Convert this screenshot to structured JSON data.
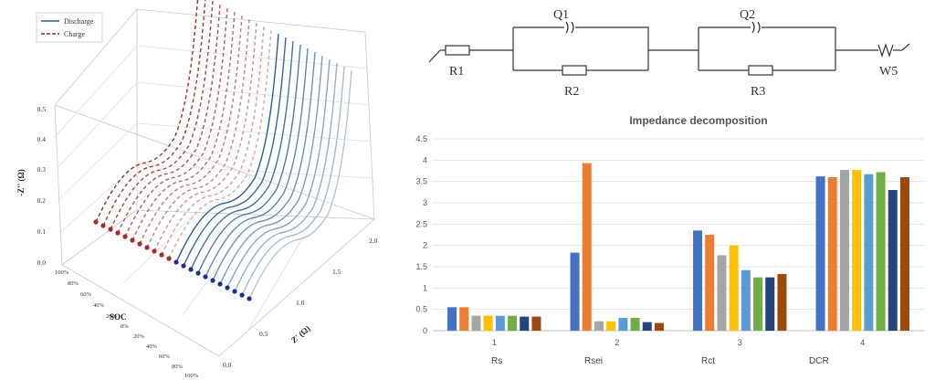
{
  "chart_data": [
    {
      "type": "line",
      "view": "3d-waterfall",
      "xlabel": "Z' (Ω)",
      "ylabel": "SOC",
      "zlabel": "-Z'' (Ω)",
      "x_ticks": [
        "0.0",
        "0.5",
        "1.0",
        "1.5",
        "2.0"
      ],
      "y_ticks": [
        "100%",
        "80%",
        "60%",
        "40%",
        "20%",
        "0%",
        "20%",
        "40%",
        "60%",
        "80%",
        "100%"
      ],
      "z_ticks": [
        "0.0",
        "0.1",
        "0.2",
        "0.3",
        "0.4",
        "0.5"
      ],
      "legend": [
        {
          "label": "Discharge",
          "color": "#2b5d94",
          "style": "solid"
        },
        {
          "label": "Charge",
          "color": "#a72a2a",
          "style": "dashed"
        }
      ],
      "legend_position": "top-left",
      "series_count": {
        "charge": 11,
        "discharge": 11
      }
    },
    {
      "type": "diagram",
      "labels": {
        "r1": "R1",
        "q1": "Q1",
        "r2": "R2",
        "q2": "Q2",
        "r3": "R3",
        "w5": "W5"
      }
    },
    {
      "type": "bar",
      "title": "Impedance decomposition",
      "categories": [
        "1",
        "2",
        "3",
        "4"
      ],
      "category_sublabels": [
        "Rs",
        "Rsei",
        "Rct",
        "DCR"
      ],
      "ylim": [
        0,
        4.5
      ],
      "y_ticks": [
        "0",
        "0.5",
        "1",
        "1.5",
        "2",
        "2.5",
        "3",
        "3.5",
        "4",
        "4.5"
      ],
      "grid": true,
      "colors": [
        "#4472c4",
        "#ed7d31",
        "#a5a5a5",
        "#ffc000",
        "#5b9bd5",
        "#70ad47",
        "#264478",
        "#9e480e"
      ],
      "series": [
        {
          "values": [
            0.55,
            1.83,
            2.35,
            3.62
          ]
        },
        {
          "values": [
            0.55,
            3.93,
            2.25,
            3.6
          ]
        },
        {
          "values": [
            0.35,
            0.22,
            1.77,
            3.77
          ]
        },
        {
          "values": [
            0.35,
            0.22,
            2.0,
            3.77
          ]
        },
        {
          "values": [
            0.35,
            0.3,
            1.42,
            3.67
          ]
        },
        {
          "values": [
            0.35,
            0.3,
            1.25,
            3.72
          ]
        },
        {
          "values": [
            0.33,
            0.2,
            1.25,
            3.3
          ]
        },
        {
          "values": [
            0.33,
            0.18,
            1.33,
            3.6
          ]
        }
      ]
    }
  ]
}
